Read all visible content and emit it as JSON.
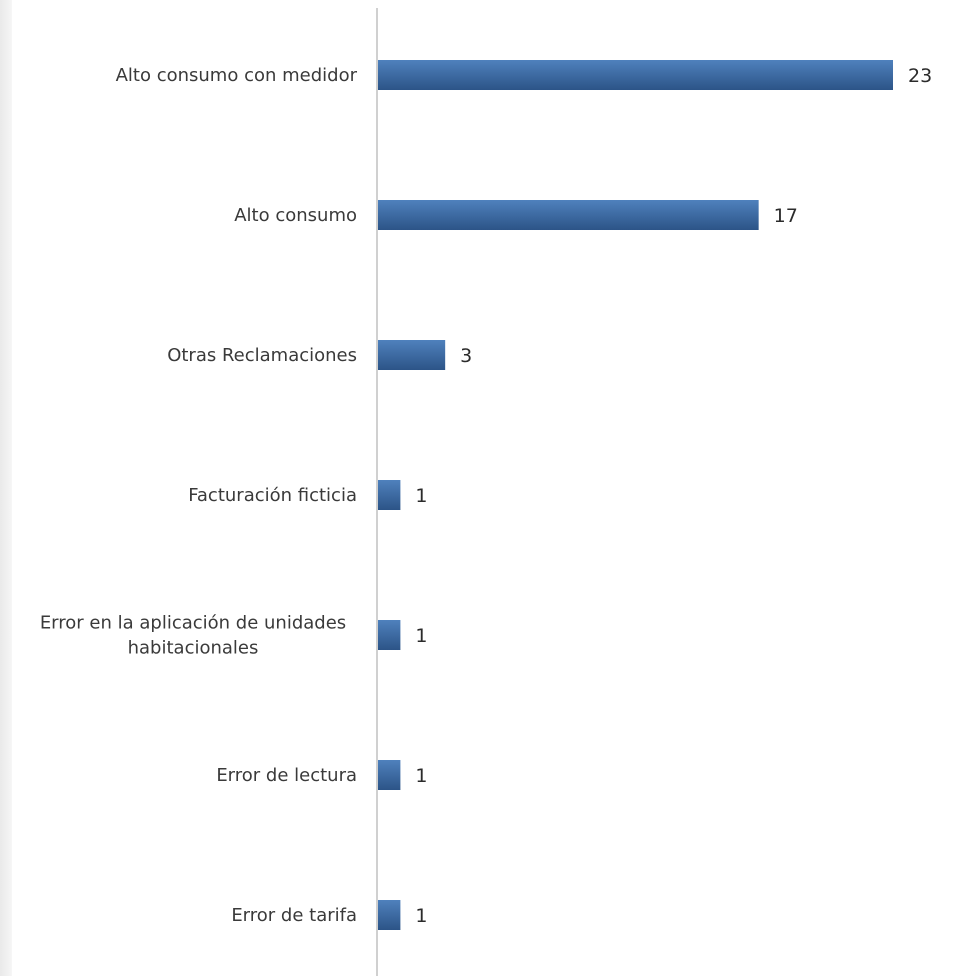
{
  "chart_data": {
    "type": "bar",
    "orientation": "horizontal",
    "categories": [
      "Alto consumo con medidor",
      "Alto consumo",
      "Otras Reclamaciones",
      "Facturación ficticia",
      "Error en la aplicación de unidades habitacionales",
      "Error de lectura",
      "Error de tarifa"
    ],
    "category_lines": [
      [
        "Alto consumo con medidor"
      ],
      [
        "Alto consumo"
      ],
      [
        "Otras Reclamaciones"
      ],
      [
        "Facturación ficticia"
      ],
      [
        "Error en la aplicación de unidades",
        "habitacionales"
      ],
      [
        "Error de lectura"
      ],
      [
        "Error de tarifa"
      ]
    ],
    "values": [
      23,
      17,
      3,
      1,
      1,
      1,
      1
    ],
    "data_labels": [
      "23",
      "17",
      "3",
      "1",
      "1",
      "1",
      "1"
    ],
    "title": "",
    "xlabel": "",
    "ylabel": "",
    "xlim": [
      0,
      23
    ],
    "grid": false,
    "legend": "none",
    "colors": {
      "bar_top": "#4f81bd",
      "bar_bottom": "#2c5487",
      "axis_line": "#d0d0d0"
    }
  }
}
